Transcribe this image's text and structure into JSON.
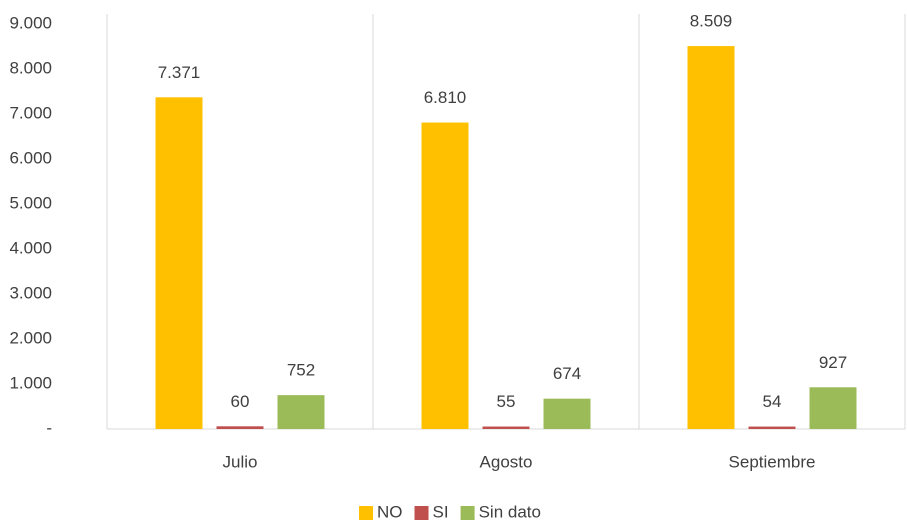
{
  "chart_data": {
    "type": "bar",
    "categories": [
      "Julio",
      "Agosto",
      "Septiembre"
    ],
    "series": [
      {
        "name": "NO",
        "color": "#FFC000",
        "values": [
          7371,
          6810,
          8509
        ],
        "value_labels": [
          "7.371",
          "6.810",
          "8.509"
        ]
      },
      {
        "name": "SI",
        "color": "#C0504D",
        "values": [
          60,
          55,
          54
        ]
      },
      {
        "name": "Sin dato",
        "color": "#9BBB59",
        "values": [
          752,
          674,
          927
        ]
      }
    ],
    "ylim": [
      0,
      9000
    ],
    "yticks": [
      {
        "value": 0,
        "label": "-"
      },
      {
        "value": 1000,
        "label": "1.000"
      },
      {
        "value": 2000,
        "label": "2.000"
      },
      {
        "value": 3000,
        "label": "3.000"
      },
      {
        "value": 4000,
        "label": "4.000"
      },
      {
        "value": 5000,
        "label": "5.000"
      },
      {
        "value": 6000,
        "label": "6.000"
      },
      {
        "value": 7000,
        "label": "7.000"
      },
      {
        "value": 8000,
        "label": "8.000"
      },
      {
        "value": 9000,
        "label": "9.000"
      }
    ],
    "grid": false,
    "legend": "bottom"
  }
}
